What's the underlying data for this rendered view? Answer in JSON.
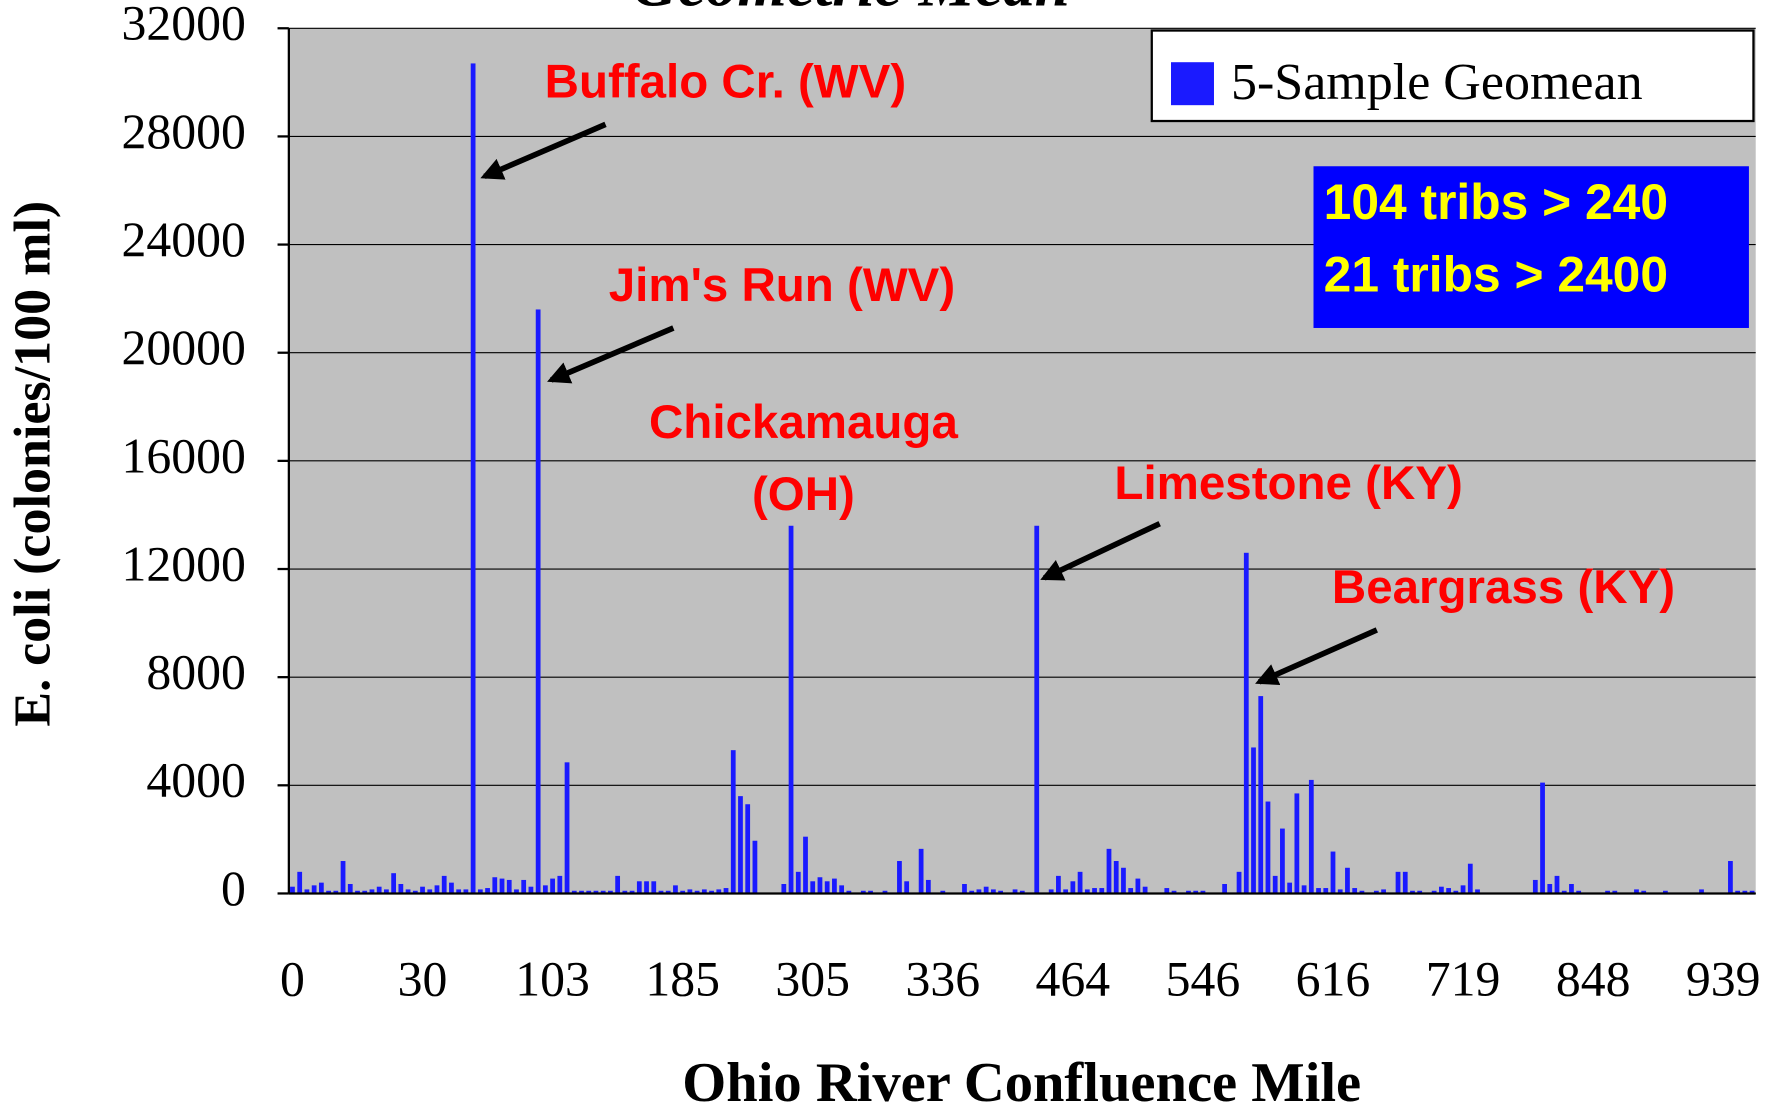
{
  "chart_data": {
    "type": "bar",
    "title": "Geometric Mean",
    "x_label": "Ohio River Confluence Mile",
    "y_label": "E. coli (colonies/100 ml)",
    "ylim": [
      0,
      32000
    ],
    "yticks": [
      0,
      4000,
      8000,
      12000,
      16000,
      20000,
      24000,
      28000,
      32000
    ],
    "grid": true,
    "legend": "top-right",
    "categories": [
      "0",
      null,
      null,
      null,
      null,
      null,
      null,
      null,
      null,
      null,
      null,
      null,
      null,
      null,
      null,
      null,
      null,
      null,
      "30",
      null,
      null,
      null,
      null,
      null,
      null,
      null,
      null,
      null,
      null,
      null,
      null,
      null,
      null,
      null,
      null,
      null,
      "103",
      null,
      null,
      null,
      null,
      null,
      null,
      null,
      null,
      null,
      null,
      null,
      null,
      null,
      null,
      null,
      null,
      null,
      "185",
      null,
      null,
      null,
      null,
      null,
      null,
      null,
      null,
      null,
      null,
      null,
      null,
      null,
      null,
      null,
      null,
      null,
      "305",
      null,
      null,
      null,
      null,
      null,
      null,
      null,
      null,
      null,
      null,
      null,
      null,
      null,
      null,
      null,
      null,
      null,
      "336",
      null,
      null,
      null,
      null,
      null,
      null,
      null,
      null,
      null,
      null,
      null,
      null,
      null,
      null,
      null,
      null,
      null,
      "464",
      null,
      null,
      null,
      null,
      null,
      null,
      null,
      null,
      null,
      null,
      null,
      null,
      null,
      null,
      null,
      null,
      null,
      "546",
      null,
      null,
      null,
      null,
      null,
      null,
      null,
      null,
      null,
      null,
      null,
      null,
      null,
      null,
      null,
      null,
      null,
      "616",
      null,
      null,
      null,
      null,
      null,
      null,
      null,
      null,
      null,
      null,
      null,
      null,
      null,
      null,
      null,
      null,
      null,
      "719",
      null,
      null,
      null,
      null,
      null,
      null,
      null,
      null,
      null,
      null,
      null,
      null,
      null,
      null,
      null,
      null,
      null,
      "848",
      null,
      null,
      null,
      null,
      null,
      null,
      null,
      null,
      null,
      null,
      null,
      null,
      null,
      null,
      null,
      null,
      null,
      "939",
      null,
      null,
      null,
      null
    ],
    "series": [
      {
        "name": "5-Sample Geomean",
        "color": "#1a1aff",
        "values": [
          250,
          800,
          150,
          300,
          400,
          100,
          100,
          1200,
          350,
          100,
          100,
          150,
          250,
          150,
          750,
          350,
          150,
          100,
          250,
          150,
          300,
          650,
          400,
          150,
          150,
          30700,
          150,
          200,
          600,
          550,
          500,
          150,
          500,
          250,
          21600,
          300,
          550,
          650,
          4850,
          100,
          100,
          100,
          100,
          100,
          100,
          650,
          100,
          100,
          450,
          450,
          450,
          100,
          100,
          300,
          100,
          150,
          100,
          150,
          100,
          150,
          200,
          5300,
          3600,
          3300,
          1950,
          0,
          0,
          0,
          350,
          13600,
          800,
          2100,
          450,
          600,
          450,
          550,
          300,
          100,
          0,
          100,
          100,
          0,
          100,
          0,
          1200,
          450,
          0,
          1650,
          500,
          0,
          100,
          0,
          0,
          350,
          100,
          150,
          250,
          150,
          100,
          0,
          150,
          100,
          0,
          13600,
          0,
          150,
          650,
          150,
          450,
          800,
          150,
          200,
          200,
          1650,
          1200,
          950,
          200,
          550,
          250,
          0,
          0,
          200,
          100,
          0,
          100,
          100,
          100,
          0,
          0,
          350,
          0,
          800,
          12600,
          5400,
          7300,
          3400,
          650,
          2400,
          400,
          3700,
          300,
          4200,
          200,
          200,
          1550,
          150,
          950,
          200,
          100,
          0,
          100,
          150,
          0,
          800,
          800,
          100,
          100,
          0,
          100,
          250,
          200,
          100,
          300,
          1100,
          150,
          0,
          0,
          0,
          0,
          0,
          0,
          0,
          500,
          4100,
          350,
          650,
          100,
          350,
          100,
          0,
          0,
          0,
          100,
          100,
          0,
          0,
          150,
          100,
          0,
          0,
          100,
          0,
          0,
          0,
          0,
          150,
          0,
          0,
          0,
          1200,
          100,
          100,
          100
        ]
      }
    ],
    "annotations": [
      {
        "lines": [
          "Buffalo Cr. (WV)"
        ]
      },
      {
        "lines": [
          "Jim's Run (WV)"
        ]
      },
      {
        "lines": [
          "Chickamauga",
          "(OH)"
        ]
      },
      {
        "lines": [
          "Limestone (KY)"
        ]
      },
      {
        "lines": [
          "Beargrass (KY)"
        ]
      }
    ],
    "info_box": {
      "lines": [
        "104 tribs > 240",
        "21 tribs > 2400"
      ]
    }
  }
}
